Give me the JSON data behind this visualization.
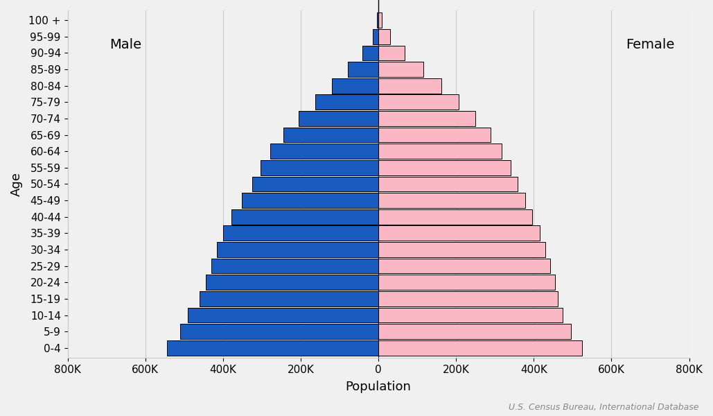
{
  "age_groups": [
    "0-4",
    "5-9",
    "10-14",
    "15-19",
    "20-24",
    "25-29",
    "30-34",
    "35-39",
    "40-44",
    "45-49",
    "50-54",
    "55-59",
    "60-64",
    "65-69",
    "70-74",
    "75-79",
    "80-84",
    "85-89",
    "90-94",
    "95-99",
    "100 +"
  ],
  "male": [
    545000,
    510000,
    490000,
    460000,
    445000,
    430000,
    415000,
    400000,
    378000,
    352000,
    325000,
    303000,
    278000,
    245000,
    205000,
    163000,
    120000,
    78000,
    42000,
    15000,
    3000
  ],
  "female": [
    525000,
    495000,
    475000,
    462000,
    455000,
    443000,
    430000,
    415000,
    395000,
    378000,
    358000,
    340000,
    318000,
    289000,
    249000,
    207000,
    162000,
    115000,
    68000,
    30000,
    8000
  ],
  "male_color": "#1a5bbf",
  "female_color": "#f9b8c4",
  "edge_color": "#000000",
  "edge_linewidth": 0.7,
  "background_color": "#f0f0f0",
  "xlabel": "Population",
  "ylabel": "Age",
  "male_label": "Male",
  "female_label": "Female",
  "source_text": "U.S. Census Bureau, International Database",
  "xlim": 800000,
  "tick_values": [
    -800000,
    -600000,
    -400000,
    -200000,
    0,
    200000,
    400000,
    600000,
    800000
  ],
  "tick_labels": [
    "800K",
    "600K",
    "400K",
    "200K",
    "0",
    "200K",
    "400K",
    "600K",
    "800K"
  ],
  "grid_color": "#c8c8c8",
  "label_fontsize": 13,
  "tick_fontsize": 11,
  "annotation_fontsize": 14,
  "bar_height": 0.92
}
